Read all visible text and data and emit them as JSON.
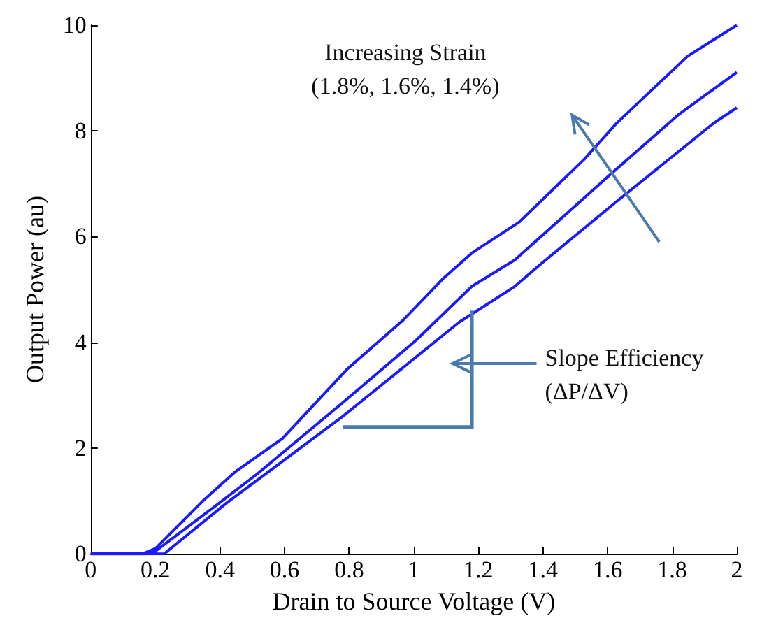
{
  "chart_data": {
    "type": "line",
    "xlabel": "Drain to Source Voltage (V)",
    "ylabel": "Output Power (au)",
    "annotations": [
      "Increasing Strain\n(1.8%, 1.6%, 1.4%)",
      "Slope Efficiency\n(ΔP/ΔV)"
    ],
    "series": [
      {
        "color": "#1a1aff",
        "x": [
          0,
          0.16,
          0.2,
          0.347,
          0.447,
          0.593,
          0.793,
          0.967,
          1.093,
          1.18,
          1.327,
          1.527,
          1.627,
          1.847,
          2.0
        ],
        "values": [
          0,
          0,
          0.1,
          1.0,
          1.55,
          2.18,
          3.49,
          4.42,
          5.22,
          5.69,
          6.28,
          7.46,
          8.14,
          9.41,
          10.0
        ]
      },
      {
        "color": "#1a1aff",
        "x": [
          0,
          0.18,
          0.2,
          0.387,
          0.513,
          0.78,
          1.007,
          1.18,
          1.313,
          1.6,
          1.82,
          2.0
        ],
        "values": [
          0,
          0,
          0.05,
          0.91,
          1.5,
          2.86,
          4.04,
          5.06,
          5.56,
          7.13,
          8.31,
          9.11
        ]
      },
      {
        "color": "#1a1aff",
        "x": [
          0,
          0.227,
          0.42,
          0.78,
          1.14,
          1.313,
          1.393,
          1.627,
          1.927,
          2.0
        ],
        "values": [
          0,
          0,
          0.96,
          2.6,
          4.38,
          5.06,
          5.48,
          6.66,
          8.14,
          8.44
        ]
      }
    ],
    "xlim": [
      0,
      2
    ],
    "xticks": [
      0,
      0.2,
      0.4,
      0.6,
      0.8,
      1,
      1.2,
      1.4,
      1.6,
      1.8,
      2
    ],
    "ylim": [
      0,
      10
    ],
    "yticks": [
      0,
      2,
      4,
      6,
      8,
      10
    ],
    "marker": "none",
    "line_style": "solid",
    "grid": false
  }
}
